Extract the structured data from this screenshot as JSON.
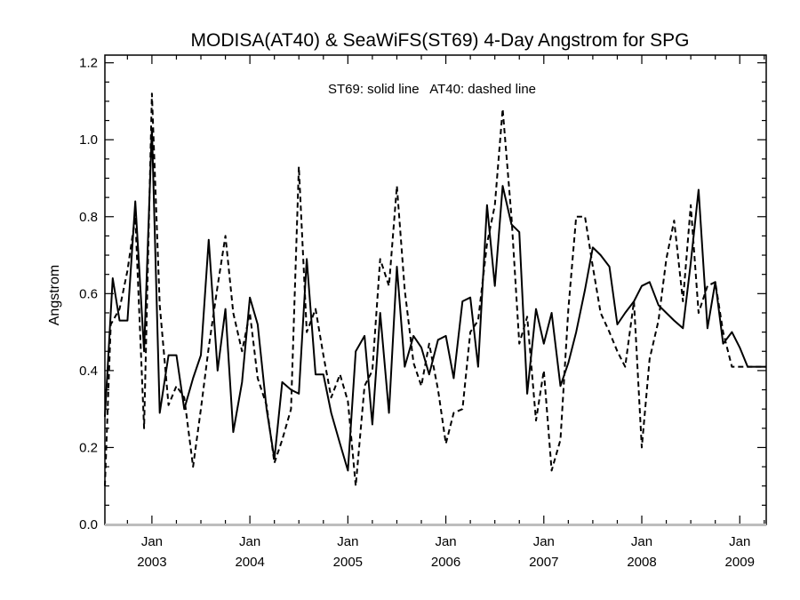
{
  "chart_data": {
    "type": "line",
    "title": "MODISA(AT40) & SeaWiFS(ST69) 4-Day Angstrom for SPG",
    "annotation": "ST69: solid line   AT40: dashed line",
    "xlabel": "",
    "ylabel": "Angstrom",
    "xlim": [
      2002.52,
      2009.27
    ],
    "ylim": [
      0.0,
      1.22
    ],
    "yticks": [
      "0.0",
      "0.2",
      "0.4",
      "0.6",
      "0.8",
      "1.0",
      "1.2"
    ],
    "xticks": [
      {
        "month": "Jan",
        "year": "2003",
        "x": 2003.0
      },
      {
        "month": "Jan",
        "year": "2004",
        "x": 2004.0
      },
      {
        "month": "Jan",
        "year": "2005",
        "x": 2005.0
      },
      {
        "month": "Jan",
        "year": "2006",
        "x": 2006.0
      },
      {
        "month": "Jan",
        "year": "2007",
        "x": 2007.0
      },
      {
        "month": "Jan",
        "year": "2008",
        "x": 2008.0
      },
      {
        "month": "Jan",
        "year": "2009",
        "x": 2009.0
      }
    ],
    "grid": false,
    "series": [
      {
        "name": "ST69",
        "style": "solid",
        "x": [
          2002.52,
          2002.6,
          2002.67,
          2002.75,
          2002.83,
          2002.92,
          2003.0,
          2003.08,
          2003.17,
          2003.25,
          2003.33,
          2003.42,
          2003.5,
          2003.58,
          2003.67,
          2003.75,
          2003.83,
          2003.92,
          2004.0,
          2004.08,
          2004.17,
          2004.25,
          2004.33,
          2004.42,
          2004.5,
          2004.58,
          2004.67,
          2004.75,
          2004.83,
          2004.92,
          2005.0,
          2005.08,
          2005.17,
          2005.25,
          2005.33,
          2005.42,
          2005.5,
          2005.58,
          2005.67,
          2005.75,
          2005.83,
          2005.92,
          2006.0,
          2006.08,
          2006.17,
          2006.25,
          2006.33,
          2006.42,
          2006.5,
          2006.58,
          2006.67,
          2006.75,
          2006.83,
          2006.92,
          2007.0,
          2007.08,
          2007.17,
          2007.25,
          2007.33,
          2007.42,
          2007.5,
          2007.58,
          2007.67,
          2007.75,
          2007.83,
          2007.92,
          2008.0,
          2008.08,
          2008.17,
          2008.25,
          2008.33,
          2008.42,
          2008.5,
          2008.58,
          2008.67,
          2008.75,
          2008.83,
          2008.92,
          2009.0,
          2009.08,
          2009.17,
          2009.25,
          2009.27
        ],
        "y": [
          0.28,
          0.64,
          0.53,
          0.53,
          0.84,
          0.45,
          1.03,
          0.29,
          0.44,
          0.44,
          0.3,
          0.38,
          0.44,
          0.74,
          0.4,
          0.56,
          0.24,
          0.37,
          0.59,
          0.52,
          0.3,
          0.17,
          0.37,
          0.35,
          0.34,
          0.69,
          0.39,
          0.39,
          0.29,
          0.21,
          0.14,
          0.45,
          0.49,
          0.26,
          0.55,
          0.29,
          0.67,
          0.41,
          0.49,
          0.46,
          0.39,
          0.48,
          0.49,
          0.38,
          0.58,
          0.59,
          0.41,
          0.83,
          0.62,
          0.88,
          0.78,
          0.76,
          0.34,
          0.56,
          0.47,
          0.55,
          0.36,
          0.42,
          0.5,
          0.61,
          0.72,
          0.7,
          0.67,
          0.52,
          0.55,
          0.58,
          0.62,
          0.63,
          0.57,
          0.55,
          0.53,
          0.51,
          0.68,
          0.87,
          0.51,
          0.63,
          0.47,
          0.5,
          0.46,
          0.41,
          0.41,
          0.41,
          0.41
        ]
      },
      {
        "name": "AT40",
        "style": "dashed",
        "x": [
          2002.52,
          2002.58,
          2002.67,
          2002.75,
          2002.83,
          2002.92,
          2003.0,
          2003.08,
          2003.17,
          2003.25,
          2003.33,
          2003.42,
          2003.5,
          2003.58,
          2003.67,
          2003.75,
          2003.83,
          2003.92,
          2004.0,
          2004.08,
          2004.17,
          2004.25,
          2004.33,
          2004.42,
          2004.5,
          2004.58,
          2004.67,
          2004.75,
          2004.83,
          2004.92,
          2005.0,
          2005.08,
          2005.17,
          2005.25,
          2005.33,
          2005.42,
          2005.5,
          2005.58,
          2005.67,
          2005.75,
          2005.83,
          2005.92,
          2006.0,
          2006.08,
          2006.17,
          2006.25,
          2006.33,
          2006.42,
          2006.5,
          2006.58,
          2006.67,
          2006.75,
          2006.83,
          2006.92,
          2007.0,
          2007.08,
          2007.17,
          2007.25,
          2007.33,
          2007.42,
          2007.5,
          2007.58,
          2007.67,
          2007.75,
          2007.83,
          2007.92,
          2008.0,
          2008.08,
          2008.17,
          2008.25,
          2008.33,
          2008.42,
          2008.5,
          2008.58,
          2008.67,
          2008.75,
          2008.83,
          2008.92,
          2009.0,
          2009.08,
          2009.17,
          2009.25,
          2009.27
        ],
        "y": [
          0.1,
          0.52,
          0.56,
          0.66,
          0.8,
          0.25,
          1.12,
          0.57,
          0.31,
          0.36,
          0.33,
          0.15,
          0.3,
          0.46,
          0.62,
          0.75,
          0.55,
          0.45,
          0.55,
          0.38,
          0.31,
          0.16,
          0.22,
          0.3,
          0.93,
          0.5,
          0.56,
          0.44,
          0.33,
          0.39,
          0.32,
          0.1,
          0.36,
          0.4,
          0.69,
          0.62,
          0.88,
          0.61,
          0.42,
          0.36,
          0.47,
          0.35,
          0.21,
          0.29,
          0.3,
          0.5,
          0.53,
          0.73,
          0.83,
          1.08,
          0.8,
          0.47,
          0.54,
          0.27,
          0.4,
          0.14,
          0.22,
          0.56,
          0.8,
          0.8,
          0.67,
          0.55,
          0.5,
          0.45,
          0.41,
          0.58,
          0.2,
          0.43,
          0.53,
          0.69,
          0.79,
          0.58,
          0.83,
          0.55,
          0.62,
          0.63,
          0.5,
          0.41,
          0.41,
          0.41,
          0.41,
          0.41,
          0.41
        ]
      }
    ]
  }
}
